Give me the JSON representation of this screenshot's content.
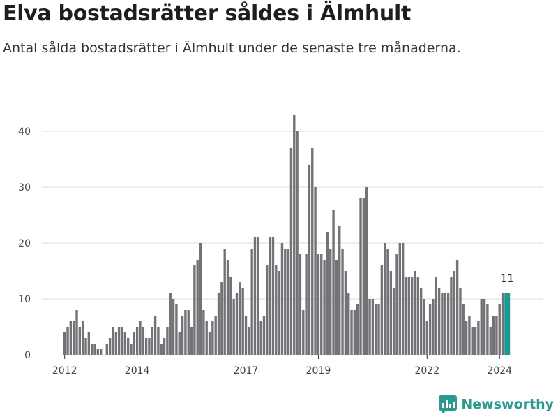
{
  "title": "Elva bostadsrätter såldes i Älmhult",
  "subtitle": "Antal sålda bostadsrätter i Älmhult under de senaste tre månaderna.",
  "brand": {
    "name": "Newsworthy",
    "logo_icon": "bar-chart-logo-icon"
  },
  "colors": {
    "bar": "#737377",
    "highlight": "#1c9a90",
    "grid": "#dddddd",
    "axis": "#333333"
  },
  "chart_data": {
    "type": "bar",
    "x_start_year": 2012,
    "values": [
      4,
      5,
      6,
      6,
      8,
      5,
      6,
      3,
      4,
      2,
      2,
      1,
      1,
      0,
      2,
      3,
      5,
      4,
      5,
      5,
      4,
      3,
      2,
      4,
      5,
      6,
      5,
      3,
      3,
      5,
      7,
      5,
      2,
      3,
      5,
      11,
      10,
      9,
      4,
      7,
      8,
      8,
      5,
      16,
      17,
      20,
      8,
      6,
      4,
      6,
      7,
      11,
      13,
      19,
      17,
      14,
      10,
      11,
      13,
      12,
      7,
      5,
      19,
      21,
      21,
      6,
      7,
      16,
      21,
      21,
      16,
      15,
      20,
      19,
      19,
      37,
      43,
      40,
      18,
      8,
      18,
      34,
      37,
      30,
      18,
      18,
      17,
      22,
      19,
      26,
      17,
      23,
      19,
      15,
      11,
      8,
      8,
      9,
      28,
      28,
      30,
      10,
      10,
      9,
      9,
      16,
      20,
      19,
      15,
      12,
      18,
      20,
      20,
      14,
      14,
      14,
      15,
      14,
      12,
      10,
      6,
      9,
      10,
      14,
      12,
      11,
      11,
      11,
      14,
      15,
      17,
      12,
      9,
      6,
      7,
      5,
      5,
      6,
      10,
      10,
      9,
      5,
      7,
      7,
      9,
      11,
      11
    ],
    "highlight_last": true,
    "last_value_label": "11",
    "yticks": [
      0,
      10,
      20,
      30,
      40
    ],
    "ylim": [
      0,
      44
    ],
    "xticks": [
      "2012",
      "2014",
      "2017",
      "2019",
      "2022",
      "2024"
    ],
    "grid": true
  }
}
